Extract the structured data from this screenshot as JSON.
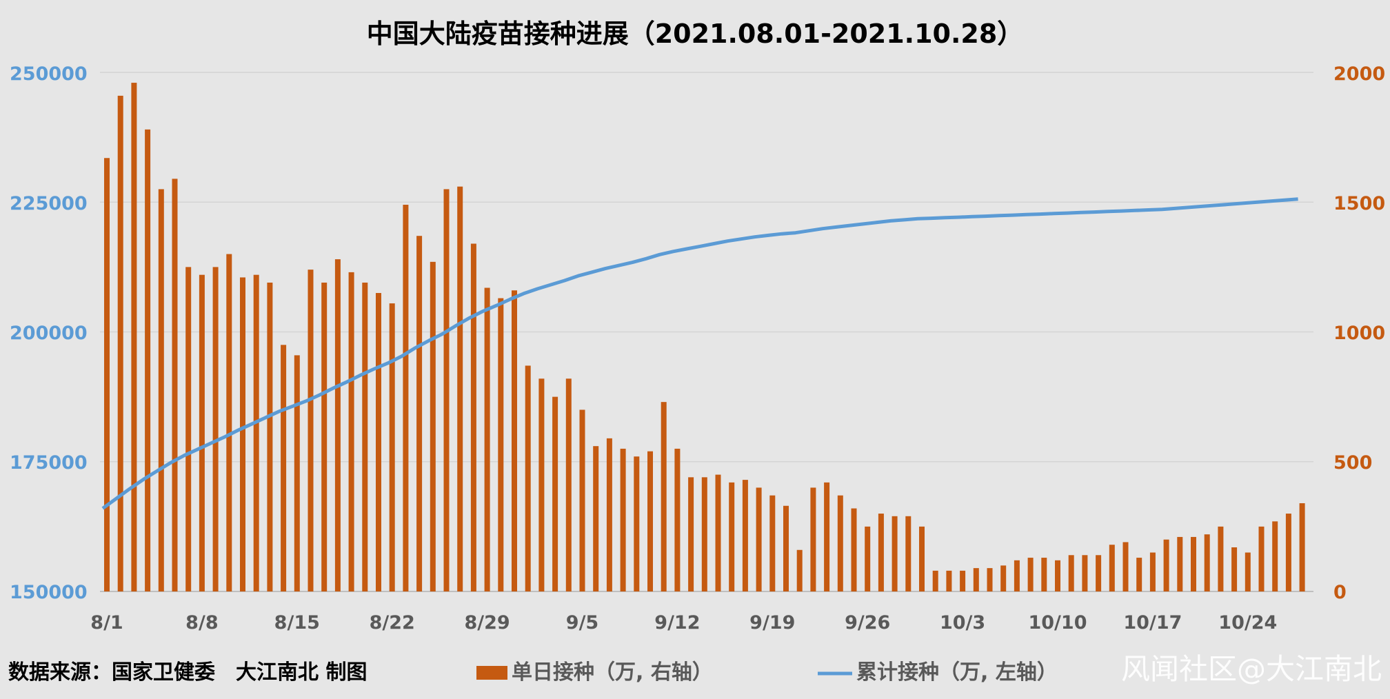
{
  "chart_data": {
    "type": "bar",
    "title": "中国大陆疫苗接种进展（2021.08.01-2021.10.28）",
    "x_tick_labels": [
      "8/1",
      "8/8",
      "8/15",
      "8/22",
      "8/29",
      "9/5",
      "9/12",
      "9/19",
      "9/26",
      "10/3",
      "10/10",
      "10/17",
      "10/24"
    ],
    "y_left": {
      "ticks": [
        "250000",
        "225000",
        "200000",
        "175000",
        "150000"
      ],
      "range": [
        150000,
        250000
      ],
      "color": "#5B9BD5"
    },
    "y_right": {
      "ticks": [
        "2000",
        "1500",
        "1000",
        "500",
        "0"
      ],
      "range": [
        0,
        2000
      ],
      "color": "#C55A11"
    },
    "grid": true,
    "legend_position": "bottom",
    "series": [
      {
        "name": "单日接种（万, 右轴）",
        "type": "bar",
        "axis": "right",
        "color": "#C55A11",
        "values": [
          1670,
          1910,
          1960,
          1780,
          1550,
          1590,
          1250,
          1220,
          1250,
          1300,
          1210,
          1220,
          1190,
          950,
          910,
          1240,
          1190,
          1280,
          1230,
          1190,
          1150,
          1110,
          1490,
          1370,
          1270,
          1550,
          1560,
          1340,
          1170,
          1130,
          1160,
          870,
          820,
          750,
          820,
          700,
          560,
          590,
          550,
          520,
          540,
          730,
          550,
          440,
          440,
          450,
          420,
          430,
          400,
          370,
          330,
          160,
          400,
          420,
          370,
          320,
          250,
          300,
          290,
          290,
          250,
          80,
          80,
          80,
          90,
          90,
          100,
          120,
          130,
          130,
          120,
          140,
          140,
          140,
          180,
          190,
          130,
          150,
          200,
          210,
          210,
          220,
          250,
          170,
          150,
          250,
          270,
          300,
          340
        ]
      },
      {
        "name": "累计接种（万, 左轴）",
        "type": "line",
        "axis": "left",
        "color": "#5B9BD5",
        "values": [
          166000,
          167900,
          169800,
          171600,
          173200,
          174800,
          176200,
          177400,
          178600,
          179800,
          181100,
          182300,
          183500,
          184700,
          185700,
          186700,
          187900,
          189200,
          190400,
          191700,
          192900,
          194000,
          195300,
          196900,
          198300,
          199600,
          201200,
          202700,
          204000,
          205100,
          206300,
          207400,
          208300,
          209100,
          209900,
          210800,
          211500,
          212200,
          212800,
          213400,
          214100,
          214900,
          215500,
          216000,
          216500,
          217000,
          217500,
          217900,
          218300,
          218600,
          218900,
          219100,
          219500,
          219900,
          220200,
          220500,
          220800,
          221100,
          221400,
          221600,
          221800,
          221900,
          222000,
          222100,
          222200,
          222300,
          222400,
          222500,
          222600,
          222700,
          222800,
          222900,
          223000,
          223100,
          223200,
          223300,
          223400,
          223500,
          223600,
          223800,
          224000,
          224200,
          224400,
          224600,
          224800,
          225000,
          225200,
          225400,
          225600
        ]
      }
    ]
  },
  "footer": {
    "source": "数据来源：国家卫健委　大江南北 制图",
    "legend_bar": "单日接种（万, 右轴）",
    "legend_line": "累计接种（万, 左轴）",
    "watermark": "风闻社区@大江南北"
  }
}
